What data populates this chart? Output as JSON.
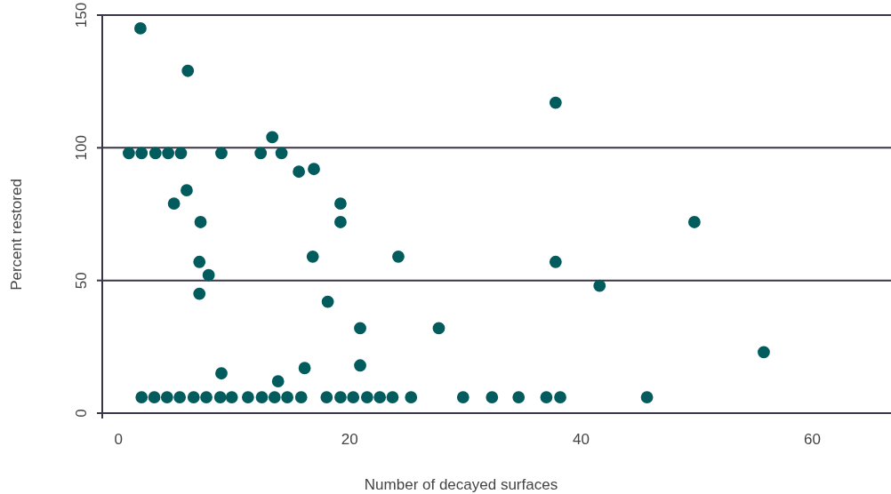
{
  "chart_data": {
    "type": "scatter",
    "xlabel": "Number of decayed surfaces",
    "ylabel": "Percent restored",
    "xlim": [
      -1.4,
      66.8
    ],
    "ylim": [
      -2,
      150
    ],
    "xticks": [
      0,
      20,
      40,
      60
    ],
    "yticks": [
      0,
      50,
      100,
      150
    ],
    "grid": "y",
    "marker": "circle",
    "series": [
      {
        "color": "#025b5c",
        "x": [
          1.9,
          6.0,
          0.9,
          2.0,
          3.2,
          4.3,
          5.4,
          8.9,
          12.3,
          14.1,
          13.3,
          15.6,
          16.9,
          5.9,
          4.8,
          19.2,
          7.1,
          19.2,
          7.0,
          7.8,
          7.0,
          16.8,
          24.2,
          18.1,
          20.9,
          27.7,
          8.9,
          13.8,
          16.1,
          20.9,
          37.8,
          37.8,
          41.6,
          49.8,
          55.8,
          2.0,
          3.1,
          4.2,
          5.3,
          6.5,
          7.6,
          8.8,
          9.8,
          11.2,
          12.4,
          13.5,
          14.6,
          15.8,
          18.0,
          19.2,
          20.3,
          21.5,
          22.6,
          23.7,
          25.3,
          29.8,
          32.3,
          34.6,
          37.0,
          38.2,
          45.7
        ],
        "values": [
          145,
          129,
          98,
          98,
          98,
          98,
          98,
          98,
          98,
          98,
          104,
          91,
          92,
          84,
          79,
          79,
          72,
          72,
          57,
          52,
          45,
          59,
          59,
          42,
          32,
          32,
          15,
          12,
          17,
          18,
          117,
          57,
          48,
          72,
          23,
          6,
          6,
          6,
          6,
          6,
          6,
          6,
          6,
          6,
          6,
          6,
          6,
          6,
          6,
          6,
          6,
          6,
          6,
          6,
          6,
          6,
          6,
          6,
          6,
          6,
          6
        ]
      }
    ]
  }
}
